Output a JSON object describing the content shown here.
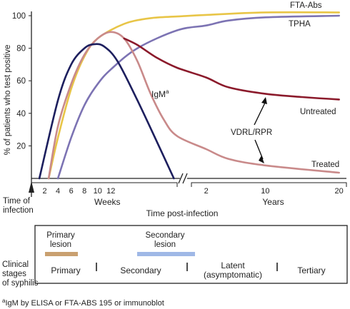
{
  "chart_data": {
    "type": "line",
    "title": "",
    "ylabel": "% of patients who test positive",
    "xlabel": "Time post-infection",
    "ylim": [
      0,
      100
    ],
    "yticks": [
      20,
      40,
      60,
      80,
      100
    ],
    "origin_label_line1": "Time of",
    "origin_label_line2": "infection",
    "weeks_segment": {
      "label": "Weeks",
      "ticks": [
        2,
        4,
        6,
        8,
        10,
        12
      ],
      "xlim": [
        0,
        22
      ]
    },
    "years_segment": {
      "label": "Years",
      "ticks": [
        2,
        10,
        20
      ],
      "xlim": [
        0,
        21
      ]
    },
    "grid": false,
    "series": [
      {
        "name": "FTA-Abs",
        "color": "#e8c547",
        "points": [
          [
            2.6,
            0
          ],
          [
            4,
            25
          ],
          [
            6,
            55
          ],
          [
            8,
            75
          ],
          [
            10,
            86
          ],
          [
            14,
            95
          ],
          [
            18,
            98.5
          ],
          [
            22,
            99.5
          ],
          [
            "y2",
            100.5
          ],
          [
            "y10",
            102
          ],
          [
            "y20",
            102
          ]
        ]
      },
      {
        "name": "TPHA",
        "color": "#7c73b3",
        "points": [
          [
            4,
            0
          ],
          [
            6,
            25
          ],
          [
            8,
            45
          ],
          [
            10,
            58
          ],
          [
            12,
            67
          ],
          [
            16,
            80
          ],
          [
            22,
            91
          ],
          [
            "y2",
            94
          ],
          [
            "y5",
            97
          ],
          [
            "y10",
            99
          ],
          [
            "y20",
            100
          ]
        ]
      },
      {
        "name": "IgM",
        "label_text": "IgM",
        "label_sup": "a",
        "color": "#1d1f5e",
        "points": [
          [
            1.2,
            0
          ],
          [
            4,
            48
          ],
          [
            6,
            70
          ],
          [
            8,
            80
          ],
          [
            9.5,
            82.5
          ],
          [
            11,
            81
          ],
          [
            13,
            72
          ],
          [
            16,
            48
          ],
          [
            19,
            22
          ],
          [
            21.5,
            0
          ]
        ]
      },
      {
        "name": "Untreated",
        "color": "#8b1a2b",
        "points": [
          [
            14,
            86
          ],
          [
            16,
            82
          ],
          [
            19,
            74
          ],
          [
            22,
            68
          ],
          [
            "y2",
            62
          ],
          [
            "y5",
            56
          ],
          [
            "y10",
            52
          ],
          [
            "y15",
            50
          ],
          [
            "y20",
            48.5
          ]
        ]
      },
      {
        "name": "Treated",
        "color": "#c98a8a",
        "points": [
          [
            2.6,
            0
          ],
          [
            4,
            32
          ],
          [
            6,
            58
          ],
          [
            8,
            76
          ],
          [
            10,
            86
          ],
          [
            12,
            90
          ],
          [
            14,
            86
          ],
          [
            16,
            72
          ],
          [
            18,
            52
          ],
          [
            20,
            36
          ],
          [
            22,
            26
          ],
          [
            "y2",
            18
          ],
          [
            "y5",
            12
          ],
          [
            "y10",
            8
          ],
          [
            "y20",
            3.5
          ]
        ]
      }
    ],
    "annotation": {
      "text": "VDRL/RPR",
      "arrow_to": [
        "Untreated",
        "Treated"
      ]
    }
  },
  "stages": {
    "row_label_lines": [
      "Clinical",
      "stages",
      "of syphilis"
    ],
    "lesions": [
      {
        "label_lines": [
          "Primary",
          "lesion"
        ],
        "color": "#c9a070"
      },
      {
        "label_lines": [
          "Secondary",
          "lesion"
        ],
        "color": "#9fb8e6"
      }
    ],
    "stage_names": [
      {
        "label_lines": [
          "Primary"
        ]
      },
      {
        "label_lines": [
          "Secondary"
        ]
      },
      {
        "label_lines": [
          "Latent",
          "(asymptomatic)"
        ]
      },
      {
        "label_lines": [
          "Tertiary"
        ]
      }
    ]
  },
  "footnote": {
    "sup": "a",
    "text": "IgM by ELISA or FTA-ABS 195 or immunoblot"
  }
}
